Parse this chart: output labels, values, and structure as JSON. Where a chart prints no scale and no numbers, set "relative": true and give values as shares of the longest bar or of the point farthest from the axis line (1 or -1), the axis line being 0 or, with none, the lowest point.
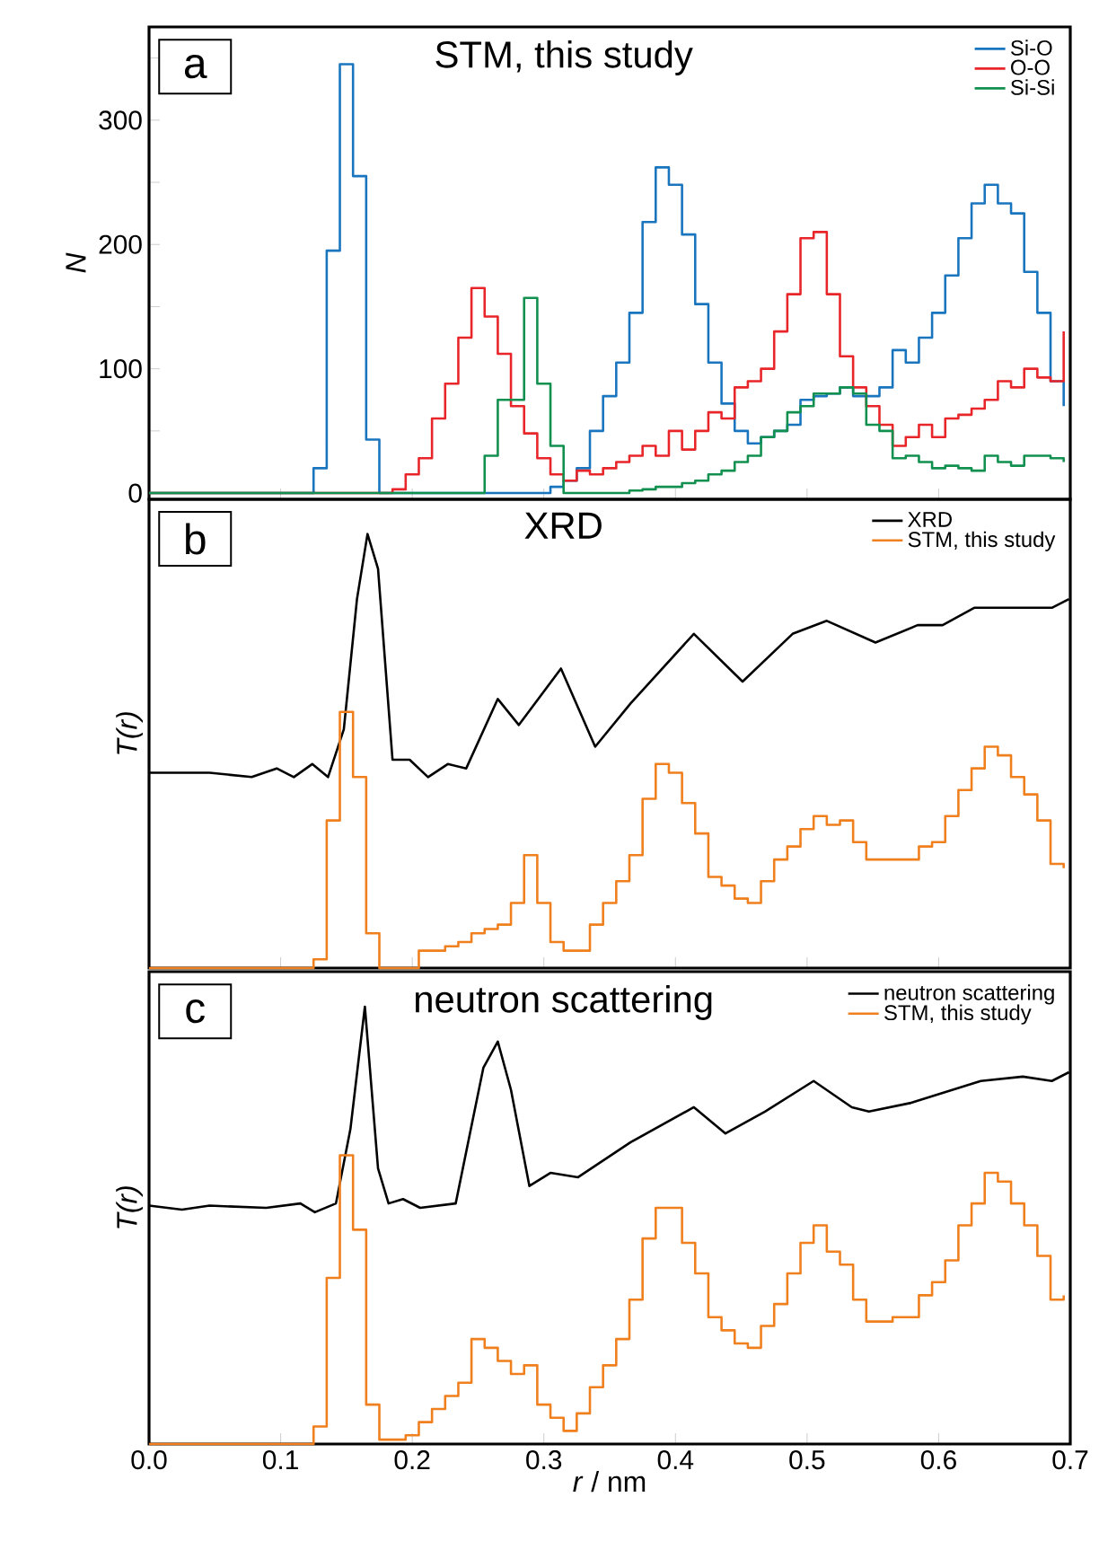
{
  "chart_data": [
    {
      "type": "step",
      "title": "STM, this study",
      "ylabel": "N",
      "annotations": [
        "a"
      ],
      "xlim": [
        0,
        0.7
      ],
      "ylim": [
        -5,
        375
      ],
      "xticks": [
        0,
        0.1,
        0.2,
        0.3,
        0.4,
        0.5,
        0.6,
        0.7
      ],
      "yticks": [
        0,
        {
          "value": 50,
          "label": null
        },
        100,
        {
          "value": 150,
          "label": null
        },
        200,
        {
          "value": 250,
          "label": null
        },
        300,
        {
          "value": 350,
          "label": null
        }
      ],
      "tick_labels": "y",
      "legend": "top right",
      "series": [
        {
          "name": "Si-O",
          "color": "#1a75bf",
          "x": [
            0,
            0.125,
            0.135,
            0.145,
            0.155,
            0.165,
            0.175,
            0.305,
            0.315,
            0.325,
            0.335,
            0.345,
            0.355,
            0.365,
            0.375,
            0.385,
            0.395,
            0.405,
            0.415,
            0.425,
            0.435,
            0.445,
            0.455,
            0.465,
            0.475,
            0.485,
            0.495,
            0.505,
            0.515,
            0.525,
            0.535,
            0.545,
            0.555,
            0.565,
            0.575,
            0.585,
            0.595,
            0.605,
            0.615,
            0.625,
            0.635,
            0.645,
            0.655,
            0.665,
            0.675,
            0.685,
            0.695
          ],
          "values": [
            0,
            20,
            195,
            345,
            255,
            43,
            0,
            5,
            10,
            20,
            50,
            78,
            105,
            145,
            218,
            262,
            248,
            208,
            152,
            105,
            72,
            50,
            40,
            45,
            50,
            55,
            75,
            78,
            80,
            85,
            78,
            78,
            85,
            115,
            105,
            125,
            145,
            175,
            205,
            233,
            248,
            233,
            225,
            178,
            145,
            90,
            70
          ]
        },
        {
          "name": "O-O",
          "color": "#e8262a",
          "x": [
            0,
            0.185,
            0.195,
            0.205,
            0.215,
            0.225,
            0.235,
            0.245,
            0.255,
            0.265,
            0.275,
            0.285,
            0.295,
            0.305,
            0.315,
            0.325,
            0.335,
            0.345,
            0.355,
            0.365,
            0.375,
            0.385,
            0.395,
            0.405,
            0.415,
            0.425,
            0.435,
            0.445,
            0.455,
            0.465,
            0.475,
            0.485,
            0.495,
            0.505,
            0.515,
            0.525,
            0.535,
            0.545,
            0.555,
            0.565,
            0.575,
            0.585,
            0.595,
            0.605,
            0.615,
            0.625,
            0.635,
            0.645,
            0.655,
            0.665,
            0.675,
            0.685,
            0.695
          ],
          "values": [
            0,
            3,
            15,
            28,
            60,
            88,
            125,
            165,
            142,
            112,
            70,
            48,
            28,
            15,
            10,
            18,
            15,
            20,
            25,
            30,
            38,
            30,
            50,
            35,
            50,
            65,
            60,
            85,
            90,
            100,
            130,
            160,
            205,
            210,
            160,
            110,
            85,
            70,
            55,
            38,
            45,
            55,
            45,
            60,
            63,
            68,
            75,
            90,
            85,
            100,
            93,
            90,
            130
          ]
        },
        {
          "name": "Si-Si",
          "color": "#12904f",
          "x": [
            0,
            0.255,
            0.265,
            0.275,
            0.285,
            0.295,
            0.305,
            0.315,
            0.365,
            0.375,
            0.385,
            0.395,
            0.405,
            0.415,
            0.425,
            0.435,
            0.445,
            0.455,
            0.465,
            0.475,
            0.485,
            0.495,
            0.505,
            0.515,
            0.525,
            0.535,
            0.545,
            0.555,
            0.565,
            0.575,
            0.585,
            0.595,
            0.605,
            0.615,
            0.625,
            0.635,
            0.645,
            0.655,
            0.665,
            0.675,
            0.685,
            0.695
          ],
          "values": [
            0,
            30,
            75,
            75,
            157,
            88,
            38,
            0,
            2,
            3,
            5,
            5,
            8,
            10,
            15,
            18,
            25,
            30,
            45,
            50,
            65,
            70,
            80,
            80,
            85,
            80,
            55,
            50,
            28,
            30,
            25,
            20,
            22,
            20,
            18,
            30,
            25,
            22,
            30,
            30,
            28,
            25
          ]
        }
      ]
    },
    {
      "type": "line",
      "title": "XRD",
      "ylabel": "T(r)",
      "annotations": [
        "b"
      ],
      "relative": true,
      "xlim": [
        0,
        0.7
      ],
      "xticks": [
        0,
        0.1,
        0.2,
        0.3,
        0.4,
        0.5,
        0.6,
        0.7
      ],
      "tick_labels": false,
      "legend": "top right",
      "series": [
        {
          "name": "XRD",
          "color": "#000000",
          "type": "line",
          "x": [
            0,
            0.046,
            0.078,
            0.097,
            0.11,
            0.124,
            0.136,
            0.148,
            0.158,
            0.166,
            0.174,
            0.185,
            0.198,
            0.212,
            0.227,
            0.241,
            0.265,
            0.281,
            0.313,
            0.339,
            0.366,
            0.414,
            0.451,
            0.489,
            0.515,
            0.552,
            0.584,
            0.603,
            0.627,
            0.659,
            0.686,
            0.699
          ],
          "values": [
            0.45,
            0.45,
            0.44,
            0.46,
            0.44,
            0.47,
            0.44,
            0.55,
            0.85,
            1.0,
            0.92,
            0.48,
            0.48,
            0.44,
            0.47,
            0.46,
            0.62,
            0.56,
            0.69,
            0.51,
            0.61,
            0.77,
            0.66,
            0.77,
            0.8,
            0.75,
            0.79,
            0.79,
            0.83,
            0.83,
            0.83,
            0.85
          ]
        },
        {
          "name": "STM, this study",
          "color": "#f07f1e",
          "type": "step",
          "x": [
            0,
            0.125,
            0.135,
            0.145,
            0.155,
            0.165,
            0.175,
            0.205,
            0.215,
            0.225,
            0.235,
            0.245,
            0.255,
            0.265,
            0.275,
            0.285,
            0.295,
            0.305,
            0.315,
            0.325,
            0.335,
            0.345,
            0.355,
            0.365,
            0.375,
            0.385,
            0.395,
            0.405,
            0.415,
            0.425,
            0.435,
            0.445,
            0.455,
            0.465,
            0.475,
            0.485,
            0.495,
            0.505,
            0.515,
            0.525,
            0.535,
            0.545,
            0.555,
            0.565,
            0.575,
            0.585,
            0.595,
            0.605,
            0.615,
            0.625,
            0.635,
            0.645,
            0.655,
            0.665,
            0.675,
            0.685,
            0.695
          ],
          "values": [
            0,
            0.02,
            0.34,
            0.59,
            0.44,
            0.08,
            0,
            0.04,
            0.04,
            0.05,
            0.06,
            0.08,
            0.09,
            0.1,
            0.15,
            0.26,
            0.15,
            0.06,
            0.04,
            0.04,
            0.1,
            0.15,
            0.2,
            0.26,
            0.39,
            0.47,
            0.45,
            0.38,
            0.31,
            0.21,
            0.19,
            0.16,
            0.15,
            0.2,
            0.25,
            0.28,
            0.32,
            0.35,
            0.33,
            0.34,
            0.29,
            0.25,
            0.25,
            0.25,
            0.25,
            0.28,
            0.29,
            0.35,
            0.41,
            0.46,
            0.51,
            0.49,
            0.44,
            0.4,
            0.34,
            0.24,
            0.23
          ]
        }
      ]
    },
    {
      "type": "line",
      "title": "neutron scattering",
      "ylabel": "T(r)",
      "xlabel": "*r* / nm",
      "annotations": [
        "c"
      ],
      "relative": true,
      "xlim": [
        0,
        0.7
      ],
      "xticks": [
        {
          "value": 0,
          "label": "0.0"
        },
        0.1,
        0.2,
        0.3,
        0.4,
        0.5,
        0.6,
        0.7
      ],
      "tick_labels": "x",
      "legend": "top right",
      "series": [
        {
          "name": "neutron scattering",
          "color": "#000000",
          "type": "line",
          "x": [
            0,
            0.025,
            0.046,
            0.089,
            0.115,
            0.126,
            0.142,
            0.153,
            0.164,
            0.174,
            0.182,
            0.193,
            0.206,
            0.233,
            0.254,
            0.265,
            0.275,
            0.289,
            0.305,
            0.326,
            0.366,
            0.414,
            0.438,
            0.468,
            0.505,
            0.534,
            0.547,
            0.579,
            0.632,
            0.664,
            0.686,
            0.699
          ],
          "values": [
            0.545,
            0.536,
            0.545,
            0.54,
            0.55,
            0.53,
            0.55,
            0.72,
            1.0,
            0.63,
            0.55,
            0.56,
            0.54,
            0.55,
            0.86,
            0.92,
            0.81,
            0.59,
            0.62,
            0.61,
            0.69,
            0.77,
            0.71,
            0.76,
            0.83,
            0.77,
            0.76,
            0.78,
            0.83,
            0.84,
            0.83,
            0.85
          ]
        },
        {
          "name": "STM, this study",
          "color": "#f07f1e",
          "type": "step",
          "x": [
            0,
            0.125,
            0.135,
            0.145,
            0.155,
            0.165,
            0.175,
            0.185,
            0.195,
            0.205,
            0.215,
            0.225,
            0.235,
            0.245,
            0.255,
            0.265,
            0.275,
            0.285,
            0.295,
            0.305,
            0.315,
            0.325,
            0.335,
            0.345,
            0.355,
            0.365,
            0.375,
            0.385,
            0.395,
            0.405,
            0.415,
            0.425,
            0.435,
            0.445,
            0.455,
            0.465,
            0.475,
            0.485,
            0.495,
            0.505,
            0.515,
            0.525,
            0.535,
            0.545,
            0.555,
            0.565,
            0.575,
            0.585,
            0.595,
            0.605,
            0.615,
            0.625,
            0.635,
            0.645,
            0.655,
            0.665,
            0.675,
            0.685,
            0.695
          ],
          "values": [
            0,
            0.04,
            0.38,
            0.66,
            0.49,
            0.09,
            0.01,
            0.01,
            0.02,
            0.05,
            0.08,
            0.11,
            0.14,
            0.24,
            0.22,
            0.19,
            0.16,
            0.18,
            0.09,
            0.06,
            0.03,
            0.07,
            0.13,
            0.18,
            0.24,
            0.33,
            0.47,
            0.54,
            0.54,
            0.46,
            0.39,
            0.29,
            0.26,
            0.23,
            0.22,
            0.27,
            0.32,
            0.39,
            0.46,
            0.5,
            0.44,
            0.41,
            0.33,
            0.28,
            0.28,
            0.29,
            0.29,
            0.34,
            0.37,
            0.42,
            0.5,
            0.55,
            0.62,
            0.6,
            0.55,
            0.5,
            0.43,
            0.33,
            0.34
          ]
        }
      ]
    }
  ]
}
